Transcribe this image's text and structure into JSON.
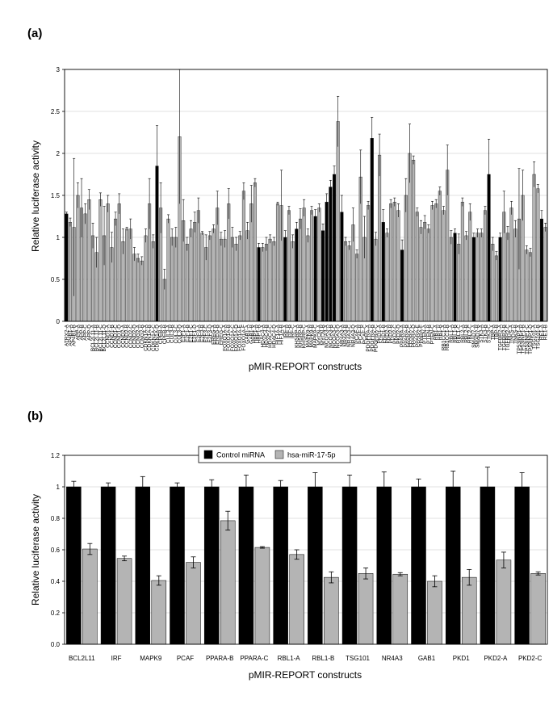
{
  "panels": {
    "a": {
      "label": "(a)"
    },
    "b": {
      "label": "(b)"
    }
  },
  "colors": {
    "control": "#000000",
    "treated": "#b4b4b4",
    "grid": "#d9d9d9",
    "plot_bg": "#ffffff"
  },
  "chart_data": [
    {
      "type": "bar",
      "title": "",
      "xlabel": "pMIR-REPORT constructs",
      "ylabel": "Relative luciferase activity",
      "ylim": [
        0,
        3
      ],
      "yticks": [
        0,
        0.5,
        1,
        1.5,
        2,
        2.5,
        3
      ],
      "ytick_labels": [
        "0",
        "0.5",
        "1",
        "1.5",
        "2",
        "2.5",
        "3"
      ],
      "grid": true,
      "categories": [
        "ATRX2-A",
        "AP4B1-A",
        "AP4B1-B",
        "APP-A",
        "APP-B",
        "APP-C",
        "APP-D",
        "BCL2L11-A",
        "BCL2L11-B",
        "BCL2L11-C",
        "BCL2L11-D",
        "CCND1-A",
        "CCND1-B",
        "CCND1-C",
        "CCND1-D",
        "CCND2-A",
        "CCND2-B",
        "CCND2-C",
        "CCND2-D",
        "CCNG2-A",
        "CCNG2-B",
        "CDKN1A-A",
        "CDKN1A-B",
        "CDKN1A-C",
        "CDKN1A-D",
        "CPEB-A",
        "CPEB-B",
        "CUL3-A",
        "CUL3-B",
        "CUL3-C",
        "CUL3-D",
        "E2F1-A",
        "E2F1-B",
        "E2F1-C",
        "E2F1-D",
        "E2F3-A",
        "E2F3-B",
        "E2F3-C",
        "E2F3-D",
        "EREG-A",
        "EREG-B",
        "EREG-C",
        "FOXO1A-A",
        "FOXO1A-B",
        "FOXO1A-C",
        "FOXO1A-D",
        "FOXO1A-E",
        "FOXO1A-F",
        "GAB1-A",
        "GAB1-B",
        "HBP1-A",
        "HBP1-B",
        "HDAC4-A",
        "HDAC4-B",
        "HDAC4-C",
        "HDAC4-D",
        "HIF1A-A",
        "HIF1A-B",
        "IRF-A",
        "IRF-B",
        "IRF-C",
        "KHSRP-A",
        "KHSRP-B",
        "KHSRP-C",
        "MAPK9-A",
        "MAPK9-B",
        "MAPK9-C",
        "MYCN-A",
        "MYCN-B",
        "NCOA3-A",
        "NCOA3-B",
        "NCOA3-C",
        "NCOA3-D",
        "NR4A3-A",
        "NR4A3-B",
        "NR4A3-C",
        "NR4A3-D",
        "PCAF-A",
        "PCAF-B",
        "PCAF-C",
        "PDGFRA-A",
        "PDGFRA-B",
        "PDGFRA-C",
        "PKD1-A",
        "PKD1-B",
        "PKD2-A",
        "PKD2-B",
        "PKD2-C",
        "PKD2-D",
        "PPARA-A",
        "PPARA-B",
        "PPARA-C",
        "PPARA-D",
        "PPARA-E",
        "PPARA-F",
        "PTEN-A",
        "PTEN-B",
        "PTEN-C",
        "RB1-A",
        "RB1-B",
        "RB1CC1-A",
        "RB1CC1-B",
        "RBL1-A",
        "RBL1-B",
        "RBL1-C",
        "RBL2-A",
        "RBL2-B",
        "RBL2-C",
        "SMAD7-A",
        "SMAD7-B",
        "STK3-A",
        "STK3-B",
        "STK3-C",
        "TBP-A",
        "TBP-B",
        "TGFBR2-A",
        "TGFBR2-B",
        "TGFBR2-C",
        "TNKS-A",
        "TNKS-B",
        "TP53INP1-A",
        "TP53INP1-B",
        "TP53INP1-C",
        "TP53INP1-D",
        "TSG101-A",
        "TSG101-B",
        "RE1-A",
        "RE1-B"
      ],
      "series": [
        {
          "kind": "mixed",
          "values": [
            1.28,
            1.18,
            1.12,
            1.5,
            1.35,
            1.28,
            1.45,
            1.02,
            0.82,
            1.45,
            1.02,
            1.4,
            0.88,
            1.22,
            1.4,
            0.95,
            1.1,
            1.1,
            0.8,
            0.75,
            0.72,
            1.02,
            1.4,
            0.95,
            1.85,
            1.35,
            0.5,
            1.22,
            1.0,
            1.0,
            2.2,
            1.2,
            0.92,
            1.1,
            1.18,
            1.32,
            1.05,
            0.88,
            1.02,
            1.1,
            1.35,
            0.98,
            0.98,
            1.4,
            1.0,
            0.92,
            1.02,
            1.55,
            1.08,
            1.4,
            1.65,
            0.88,
            0.88,
            0.92,
            0.98,
            0.95,
            1.4,
            1.38,
            1.0,
            1.32,
            0.95,
            1.1,
            1.22,
            1.35,
            1.02,
            1.32,
            1.25,
            1.35,
            1.08,
            1.42,
            1.6,
            1.75,
            2.38,
            1.3,
            0.95,
            0.9,
            1.15,
            0.8,
            1.72,
            1.0,
            1.38,
            2.18,
            0.98,
            1.98,
            1.18,
            1.05,
            1.4,
            1.42,
            1.32,
            0.85,
            1.5,
            2.0,
            1.92,
            1.3,
            1.12,
            1.18,
            1.1,
            1.38,
            1.4,
            1.55,
            1.32,
            1.8,
            1.0,
            1.05,
            0.92,
            1.42,
            1.02,
            1.3,
            1.0,
            1.05,
            1.05,
            1.32,
            1.75,
            0.92,
            0.78,
            1.0,
            1.3,
            1.05,
            1.35,
            1.1,
            1.22,
            1.5,
            0.85,
            0.82,
            1.75,
            1.58,
            1.22,
            1.12
          ],
          "errors": [
            0.02,
            0.05,
            0.82,
            0.15,
            0.35,
            0.12,
            0.12,
            0.15,
            0.18,
            0.08,
            0.35,
            0.1,
            0.18,
            0.08,
            0.12,
            0.15,
            0.02,
            0.12,
            0.08,
            0.05,
            0.05,
            0.08,
            0.3,
            0.08,
            0.48,
            0.3,
            0.12,
            0.05,
            0.1,
            0.12,
            0.8,
            0.25,
            0.08,
            0.1,
            0.12,
            0.15,
            0.02,
            0.15,
            0.05,
            0.05,
            0.2,
            0.08,
            0.1,
            0.18,
            0.12,
            0.08,
            0.05,
            0.1,
            0.1,
            0.22,
            0.05,
            0.05,
            0.05,
            0.08,
            0.05,
            0.05,
            0.02,
            0.42,
            0.08,
            0.05,
            0.08,
            0.08,
            0.12,
            0.1,
            0.08,
            0.05,
            0.08,
            0.05,
            0.08,
            0.1,
            0.08,
            0.1,
            0.3,
            0.2,
            0.05,
            0.05,
            0.2,
            0.05,
            0.32,
            0.25,
            0.05,
            0.25,
            0.08,
            0.25,
            0.15,
            0.05,
            0.05,
            0.05,
            0.08,
            0.12,
            0.2,
            0.35,
            0.05,
            0.05,
            0.08,
            0.08,
            0.05,
            0.05,
            0.05,
            0.05,
            0.05,
            0.3,
            0.08,
            0.05,
            0.12,
            0.05,
            0.05,
            0.1,
            0.05,
            0.05,
            0.05,
            0.05,
            0.42,
            0.08,
            0.05,
            0.05,
            0.25,
            0.08,
            0.08,
            0.1,
            0.6,
            0.3,
            0.05,
            0.05,
            0.15,
            0.05,
            0.1,
            0.05
          ],
          "black": [
            0,
            24,
            51,
            58,
            61,
            66,
            68,
            69,
            70,
            71,
            73,
            81,
            84,
            89,
            103,
            108,
            112,
            115,
            126
          ]
        }
      ]
    },
    {
      "type": "bar",
      "title": "",
      "xlabel": "pMIR-REPORT constructs",
      "ylabel": "Relative luciferase activity",
      "ylim": [
        0,
        1.2
      ],
      "yticks": [
        0,
        0.2,
        0.4,
        0.6,
        0.8,
        1,
        1.2
      ],
      "ytick_labels": [
        "0.0",
        "0.2",
        "0.4",
        "0.6",
        "0.8",
        "1",
        "1.2"
      ],
      "grid": true,
      "legend": "top-center",
      "categories": [
        "BCL2L11",
        "IRF",
        "MAPK9",
        "PCAF",
        "PPARA-B",
        "PPARA-C",
        "RBL1-A",
        "RBL1-B",
        "TSG101",
        "NR4A3",
        "GAB1",
        "PKD1",
        "PKD2-A",
        "PKD2-C"
      ],
      "series": [
        {
          "name": "Control miRNA",
          "values": [
            1,
            1,
            1,
            1,
            1,
            1,
            1,
            1,
            1,
            1,
            1,
            1,
            1,
            1
          ],
          "errors": [
            0.035,
            0.025,
            0.065,
            0.025,
            0.045,
            0.075,
            0.04,
            0.09,
            0.075,
            0.095,
            0.05,
            0.1,
            0.125,
            0.09
          ]
        },
        {
          "name": "hsa-miR-17-5p",
          "values": [
            0.605,
            0.545,
            0.405,
            0.52,
            0.785,
            0.615,
            0.57,
            0.425,
            0.45,
            0.445,
            0.4,
            0.425,
            0.535,
            0.45
          ],
          "errors": [
            0.035,
            0.015,
            0.03,
            0.035,
            0.06,
            0.005,
            0.03,
            0.035,
            0.035,
            0.01,
            0.035,
            0.05,
            0.05,
            0.01
          ]
        }
      ]
    }
  ]
}
